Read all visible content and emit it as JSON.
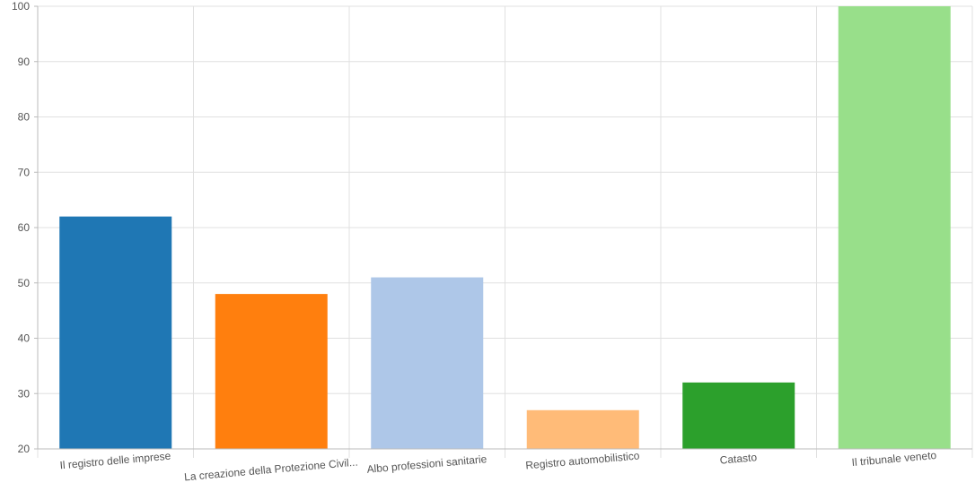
{
  "chart_data": {
    "type": "bar",
    "title": "",
    "xlabel": "",
    "ylabel": "",
    "categories": [
      "Il registro delle imprese",
      "La creazione della Protezione Civil...",
      "Albo professioni sanitarie",
      "Registro automobilistico",
      "Catasto",
      "Il tribunale veneto"
    ],
    "values": [
      62,
      48,
      51,
      27,
      32,
      100
    ],
    "colors": [
      "#1f77b4",
      "#ff7f0e",
      "#aec7e8",
      "#ffbb78",
      "#2ca02c",
      "#98df8a"
    ],
    "ylim": [
      20,
      100
    ],
    "yticks": [
      20,
      30,
      40,
      50,
      60,
      70,
      80,
      90,
      100
    ],
    "grid": true,
    "legend": "none"
  }
}
